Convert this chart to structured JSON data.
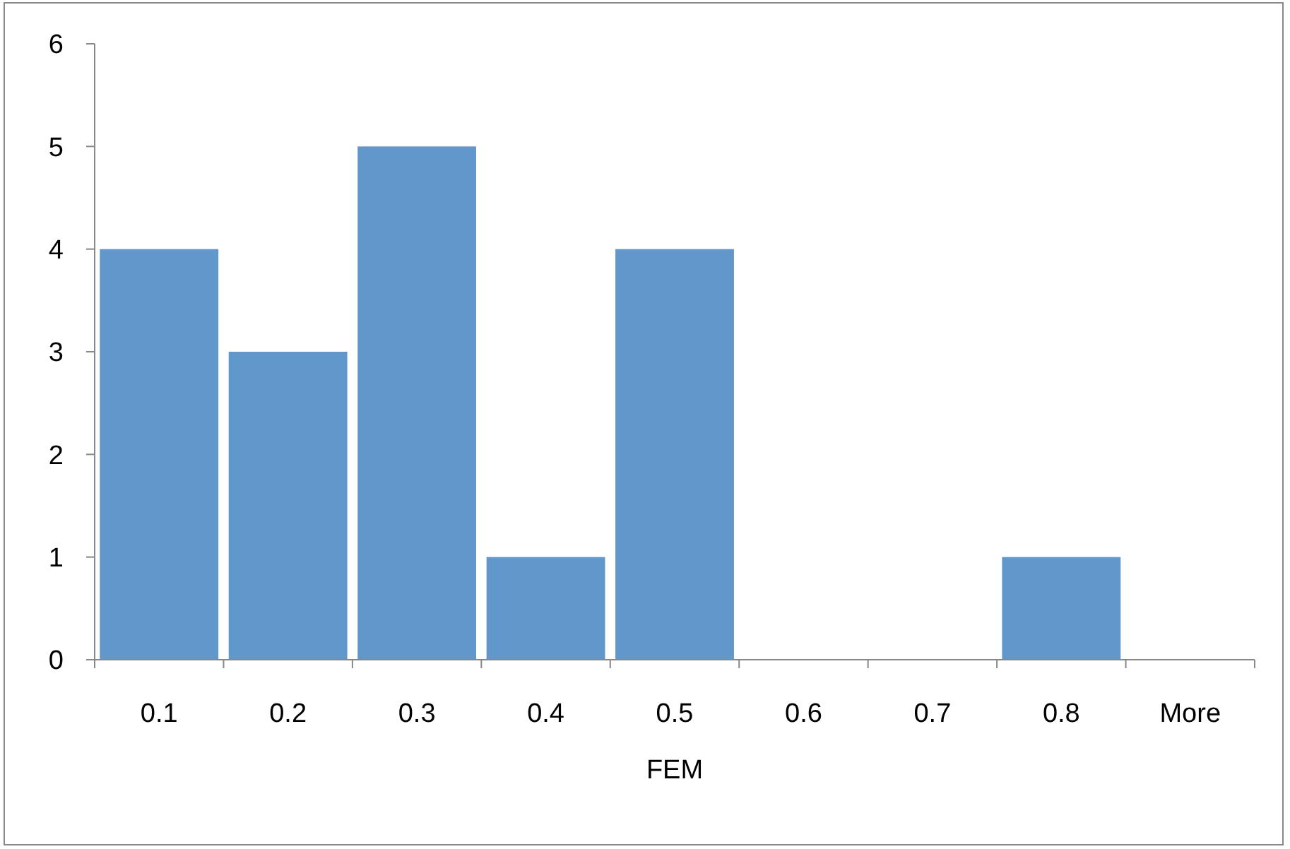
{
  "chart_data": {
    "type": "bar",
    "xlabel": "FEM",
    "categories": [
      "0.1",
      "0.2",
      "0.3",
      "0.4",
      "0.5",
      "0.6",
      "0.7",
      "0.8",
      "More"
    ],
    "values": [
      4,
      3,
      5,
      1,
      4,
      0,
      0,
      1,
      0
    ],
    "color": "#6198cb",
    "ylim": [
      0,
      6
    ],
    "yticks": [
      0,
      1,
      2,
      3,
      4,
      5,
      6
    ],
    "grid": false
  }
}
